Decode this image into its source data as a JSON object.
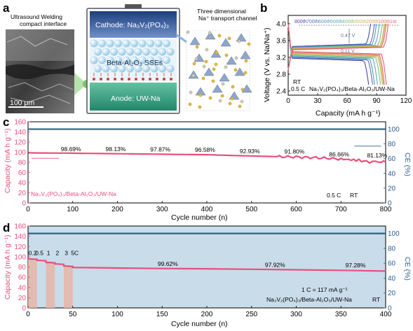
{
  "panels": {
    "a": "a",
    "b": "b",
    "c": "c",
    "d": "d"
  },
  "schematic": {
    "sem_caption_1": "Ultrasound Welding",
    "sem_caption_2": "compact interface",
    "scale_bar": "100 μm",
    "cathode_label": "Cathode: Na₃V₂(PO₄)₃",
    "sse_label": "Beta-Al₂O₃ SSEs",
    "anode_label": "Anode: UW-Na",
    "crystal_caption_1": "Three dimensional",
    "crystal_caption_2": "Na⁺ transport channel"
  },
  "colors": {
    "capacity": "#e94f7b",
    "ce": "#2e5f8f",
    "ce_bg": "#c9dcea",
    "rate_bar": "#e8b5a6",
    "cathode": "#2c4f8f",
    "anode": "#2f8f6d",
    "sse_ball": "#b9dcef"
  },
  "chart_data": [
    {
      "id": "b",
      "type": "line",
      "xlabel": "Capacity (mA h g⁻¹)",
      "ylabel": "Voltage (V vs. Na/Na⁺)",
      "xlim": [
        0,
        120
      ],
      "ylim": [
        2.3,
        4.2
      ],
      "xticks": [
        0,
        30,
        60,
        90,
        120
      ],
      "yticks": [
        2.4,
        2.8,
        3.2,
        3.6,
        4.0
      ],
      "legend_cycles": [
        "800th",
        "700th",
        "600th",
        "500th",
        "400th",
        "300th",
        "200th",
        "100th",
        "1st"
      ],
      "cycles": [
        800,
        700,
        600,
        500,
        400,
        300,
        200,
        100,
        1
      ],
      "max_capacity": [
        84,
        88,
        90,
        93,
        96,
        98,
        99,
        100,
        102
      ],
      "annotations": {
        "upper_gap": "0.47 V",
        "lower_gap": "0.11 V",
        "rt": "RT",
        "rate": "0.5 C",
        "cell": "Na₃V₂(PO₄)₃/Beta-Al₂O₃/UW-Na"
      }
    },
    {
      "id": "c",
      "type": "scatter",
      "xlabel": "Cycle number (n)",
      "ylabel": "Capacity (mA h g⁻¹)",
      "ylabel2": "CE (%)",
      "xlim": [
        0,
        800
      ],
      "ylim": [
        0,
        160
      ],
      "y2lim": [
        0,
        110
      ],
      "xticks": [
        0,
        100,
        200,
        300,
        400,
        500,
        600,
        700,
        800
      ],
      "yticks": [
        0,
        20,
        40,
        60,
        80,
        100,
        120,
        140,
        160
      ],
      "y2ticks": [
        0,
        20,
        40,
        60,
        80,
        100
      ],
      "capacity_points": [
        [
          1,
          99
        ],
        [
          10,
          98.6
        ],
        [
          80,
          98.2
        ],
        [
          200,
          97
        ],
        [
          300,
          96
        ],
        [
          400,
          95
        ],
        [
          500,
          92.5
        ],
        [
          550,
          91.5
        ],
        [
          600,
          90.5
        ],
        [
          650,
          89
        ],
        [
          700,
          86.5
        ],
        [
          740,
          84
        ],
        [
          770,
          80
        ],
        [
          790,
          82
        ],
        [
          800,
          81
        ]
      ],
      "ce_value": 100,
      "retention_labels": [
        "98.69%",
        "98.13%",
        "97.87%",
        "96.58%",
        "92.93%",
        "91.80%",
        "86.66%",
        "81.13%"
      ],
      "retention_cycles": [
        100,
        200,
        300,
        400,
        500,
        600,
        700,
        800
      ],
      "annotations": {
        "cell": "Na₃V₂(PO₄)₃/Beta-Al₂O₃/UW-Na",
        "rate": "0.5 C",
        "temp": "RT"
      }
    },
    {
      "id": "d",
      "type": "scatter",
      "xlabel": "Cycle number (n)",
      "ylabel": "Capacity (mA h g⁻¹)",
      "ylabel2": "CE (%)",
      "xlim": [
        0,
        400
      ],
      "ylim": [
        0,
        160
      ],
      "y2lim": [
        0,
        110
      ],
      "xticks": [
        0,
        50,
        100,
        150,
        200,
        250,
        300,
        350,
        400
      ],
      "yticks": [
        0,
        20,
        40,
        60,
        80,
        100,
        120,
        140,
        160
      ],
      "y2ticks": [
        0,
        20,
        40,
        60,
        80,
        100
      ],
      "rate_labels": [
        "0.2",
        "0.5",
        "1",
        "2",
        "3",
        "5C"
      ],
      "rate_segments": [
        [
          0,
          10,
          96
        ],
        [
          10,
          20,
          93
        ],
        [
          20,
          30,
          89
        ],
        [
          30,
          40,
          86
        ],
        [
          40,
          50,
          82
        ],
        [
          50,
          400,
          78
        ]
      ],
      "capacity_points": [
        [
          50,
          79
        ],
        [
          100,
          78
        ],
        [
          150,
          77
        ],
        [
          200,
          76.5
        ],
        [
          250,
          75.5
        ],
        [
          300,
          74.5
        ],
        [
          350,
          73.5
        ],
        [
          400,
          72
        ]
      ],
      "ce_value": 100,
      "retention_labels": [
        "99.62%",
        "97.92%",
        "97.28%"
      ],
      "annotations": {
        "rate_def": "1 C = 117 mA g⁻¹",
        "cell": "Na₃V₂(PO₄)₃/Beta-Al₂O₃/UW-Na",
        "temp": "RT"
      }
    }
  ]
}
